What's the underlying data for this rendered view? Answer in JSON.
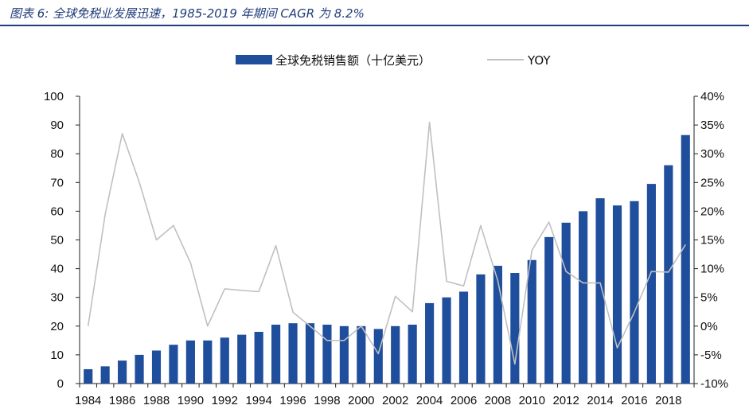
{
  "caption": "图表 6:  全球免税业发展迅速，1985-2019 年期间 CAGR 为 8.2%",
  "chart_data": {
    "type": "bar",
    "x": [
      1984,
      1985,
      1986,
      1987,
      1988,
      1989,
      1990,
      1991,
      1992,
      1993,
      1994,
      1995,
      1996,
      1997,
      1998,
      1999,
      2000,
      2001,
      2002,
      2003,
      2004,
      2005,
      2006,
      2007,
      2008,
      2009,
      2010,
      2011,
      2012,
      2013,
      2014,
      2015,
      2016,
      2017,
      2018,
      2019
    ],
    "x_tick_labels": [
      "1984",
      "1986",
      "1988",
      "1990",
      "1992",
      "1994",
      "1996",
      "1998",
      "2000",
      "2002",
      "2004",
      "2006",
      "2008",
      "2010",
      "2012",
      "2014",
      "2016",
      "2018"
    ],
    "series": [
      {
        "name": "全球免税销售额（十亿美元）",
        "type": "bar",
        "axis": "left",
        "color": "#1f4e9c",
        "values": [
          5,
          6,
          8,
          10,
          11.5,
          13.5,
          15,
          15,
          16,
          17,
          18,
          20.5,
          21,
          21,
          20.5,
          20,
          20,
          19,
          20,
          20.5,
          28,
          30,
          32,
          38,
          41,
          38.5,
          43,
          51,
          56,
          60,
          64.5,
          62,
          63.5,
          69.5,
          76,
          86.5
        ]
      },
      {
        "name": "YOY",
        "type": "line",
        "axis": "right",
        "color": "#c0c0c0",
        "values": [
          0,
          19.5,
          33.5,
          25,
          15,
          17.5,
          11,
          0,
          6.5,
          6.2,
          6,
          14,
          2.4,
          0,
          -2.5,
          -2.5,
          0,
          -4.8,
          5.2,
          2.5,
          35.5,
          7.8,
          7,
          17.5,
          7.9,
          -6.6,
          13.2,
          18.1,
          9.5,
          7.5,
          7.5,
          -3.8,
          2.4,
          9.5,
          9.4,
          14.2
        ]
      }
    ],
    "y_left": {
      "ylim": [
        0,
        100
      ],
      "ticks": [
        "0",
        "10",
        "20",
        "30",
        "40",
        "50",
        "60",
        "70",
        "80",
        "90",
        "100"
      ]
    },
    "y_right": {
      "ylim": [
        -10,
        40
      ],
      "ticks": [
        "-10%",
        "-5%",
        "0%",
        "5%",
        "10%",
        "15%",
        "20%",
        "25%",
        "30%",
        "35%",
        "40%"
      ]
    },
    "legend": {
      "placement": "top-center"
    }
  }
}
